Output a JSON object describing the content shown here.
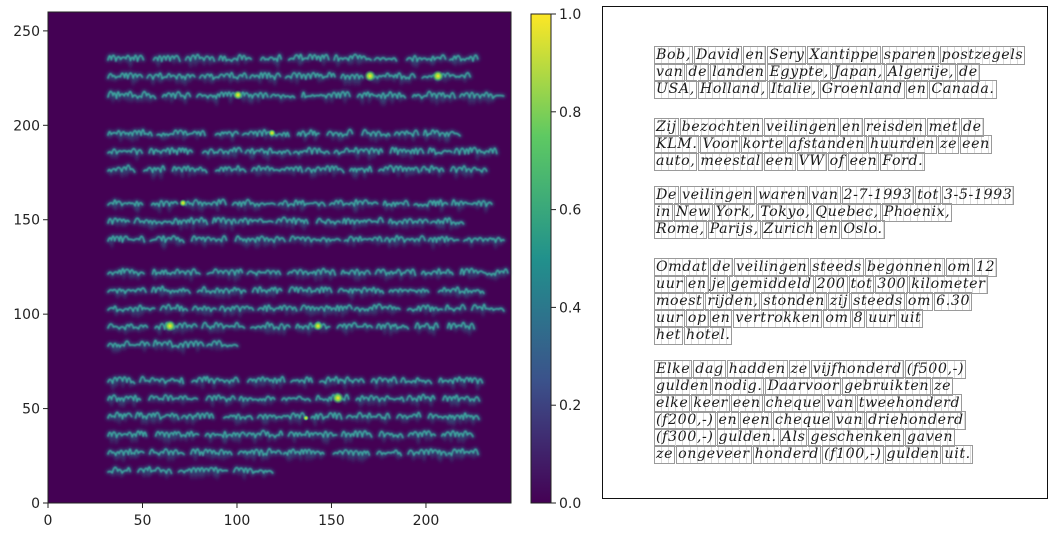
{
  "heatmap": {
    "x_ticks": [
      "0",
      "50",
      "100",
      "150",
      "200"
    ],
    "y_ticks": [
      "0",
      "50",
      "100",
      "150",
      "200",
      "250"
    ],
    "colorbar_ticks": [
      "0.0",
      "0.2",
      "0.4",
      "0.6",
      "0.8",
      "1.0"
    ],
    "colormap": [
      "#440154",
      "#3b528b",
      "#21918c",
      "#5ec962",
      "#fde725"
    ],
    "background_color": "#440154",
    "x_range": [
      0,
      245
    ],
    "y_range": [
      0,
      260
    ]
  },
  "document": {
    "paragraphs": [
      {
        "lines": [
          "Bob, David en Sery Xantippe sparen postzegels",
          "van de landen Egypte, Japan, Algerije, de",
          "USA, Holland, Italie, Groenland en Canada."
        ]
      },
      {
        "lines": [
          "Zij bezochten veilingen en reisden met de",
          "KLM. Voor korte afstanden huurden ze een",
          "auto, meestal een VW of een Ford."
        ]
      },
      {
        "lines": [
          "De veilingen waren van 2-7-1993 tot 3-5-1993",
          "in New York, Tokyo, Quebec, Phoenix,",
          "Rome, Parijs, Zurich en Oslo."
        ]
      },
      {
        "lines": [
          "Omdat de veilingen steeds begonnen om 12",
          "uur en je gemiddeld 200 tot 300 kilometer",
          "moest rijden, stonden zij steeds om 6.30",
          "uur op en vertrokken om 8 uur uit",
          "het hotel."
        ]
      },
      {
        "lines": [
          "Elke dag hadden ze vijfhonderd (f500,-)",
          "gulden nodig. Daarvoor gebruikten ze",
          "elke keer een cheque van tweehonderd",
          "(f200,-) en een cheque van driehonderd",
          "(f300,-) gulden. Als geschenken gaven",
          "ze ongeveer honderd (f100,-) gulden uit."
        ]
      }
    ]
  }
}
